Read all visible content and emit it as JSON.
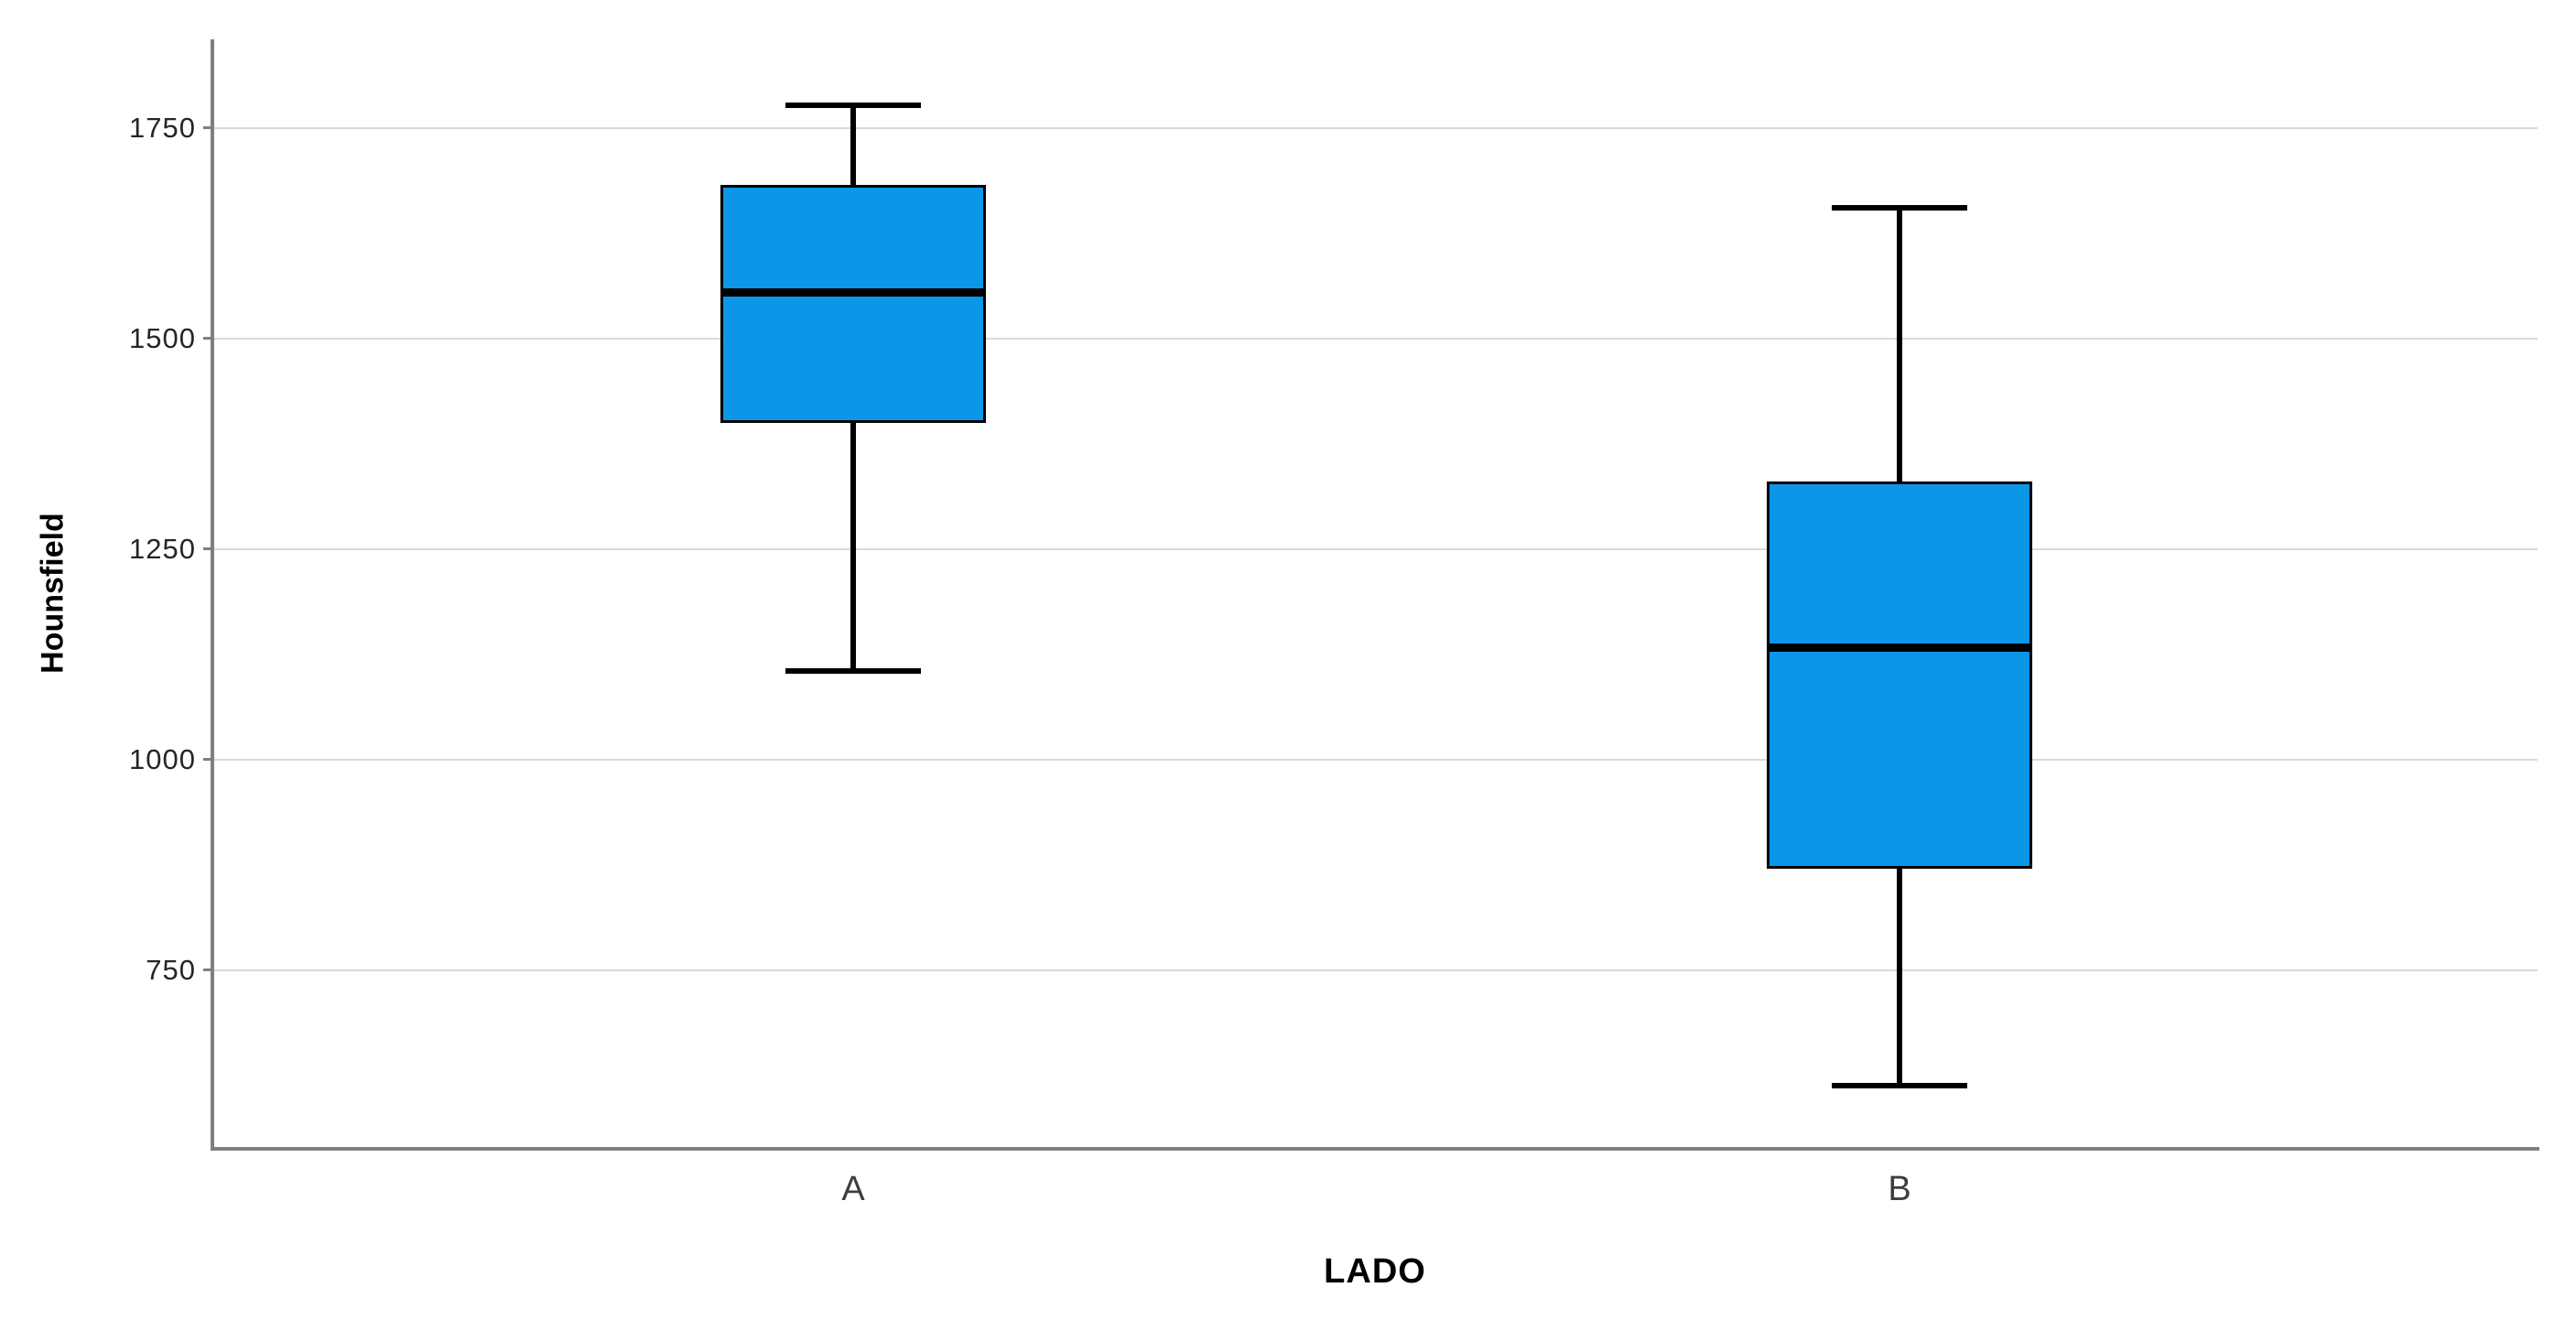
{
  "chart_data": {
    "type": "boxplot",
    "title": "",
    "xlabel": "LADO",
    "ylabel": "Hounsfield",
    "categories": [
      "A",
      "B"
    ],
    "y_ticks": [
      750,
      1000,
      1250,
      1500,
      1750
    ],
    "ylim": [
      540,
      1855
    ],
    "grid": true,
    "legend": "none",
    "series": [
      {
        "category": "A",
        "whisker_low": 1105,
        "q1": 1400,
        "median": 1555,
        "q3": 1682,
        "whisker_high": 1777
      },
      {
        "category": "B",
        "whisker_low": 613,
        "q1": 870,
        "median": 1133,
        "q3": 1330,
        "whisker_high": 1655
      }
    ],
    "colors": {
      "box_fill": "#0C96E8",
      "box_stroke": "#000000",
      "gridline": "#D9D9D9",
      "axis": "#7F7F7F",
      "tick_text": "#262626",
      "category_text": "#3D3D3D"
    }
  }
}
